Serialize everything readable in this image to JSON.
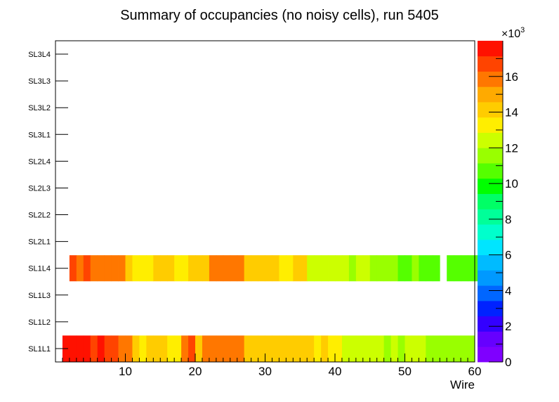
{
  "chart_data": {
    "type": "heatmap",
    "title": "Summary of occupancies (no noisy cells), run 5405",
    "xlabel": "Wire",
    "ylabel": "",
    "xlim": [
      0,
      60
    ],
    "x_ticks": [
      10,
      20,
      30,
      40,
      50,
      60
    ],
    "y_categories": [
      "SL1L1",
      "SL1L2",
      "SL1L3",
      "SL1L4",
      "SL2L1",
      "SL2L2",
      "SL2L3",
      "SL2L4",
      "SL3L1",
      "SL3L2",
      "SL3L3",
      "SL3L4"
    ],
    "z_range": [
      0,
      18000
    ],
    "z_ticks": [
      0,
      2,
      4,
      6,
      8,
      10,
      12,
      14,
      16
    ],
    "z_multiplier_label": "×10",
    "z_multiplier_exponent": "3",
    "palette": [
      "#7f00ff",
      "#6600ff",
      "#3300ff",
      "#0022ff",
      "#0066ff",
      "#0099ff",
      "#00bbff",
      "#00e5ff",
      "#00ffcc",
      "#00ff99",
      "#00ff66",
      "#00ff00",
      "#55ff00",
      "#99ff00",
      "#ccff00",
      "#ffee00",
      "#ffcc00",
      "#ffaa00",
      "#ff7700",
      "#ff4400",
      "#ff1100"
    ],
    "series": [
      {
        "name": "SL1L1",
        "values": [
          17500,
          17500,
          17500,
          17500,
          16500,
          17500,
          16500,
          16500,
          15500,
          15500,
          14500,
          13500,
          14500,
          14500,
          14500,
          13500,
          13500,
          15500,
          16500,
          14500,
          15500,
          15500,
          15500,
          15500,
          15500,
          15500,
          14500,
          14500,
          14500,
          14500,
          14500,
          14500,
          14500,
          14500,
          14500,
          14500,
          13500,
          14500,
          13500,
          13500,
          12500,
          12500,
          12500,
          12500,
          12500,
          12500,
          11500,
          12500,
          11500,
          12500,
          12500,
          12500,
          11500,
          11500,
          11500,
          11500,
          11500,
          11500,
          11500
        ]
      },
      {
        "name": "SL1L4",
        "values": [
          null,
          16500,
          15500,
          16500,
          15500,
          15500,
          15500,
          15500,
          15500,
          14500,
          13500,
          13500,
          13500,
          14500,
          14500,
          14500,
          13500,
          13500,
          14500,
          14500,
          14500,
          15500,
          15500,
          15500,
          15500,
          15500,
          14500,
          14500,
          14500,
          14500,
          14500,
          13500,
          13500,
          14500,
          14500,
          12500,
          12500,
          12500,
          12500,
          12500,
          12500,
          11500,
          12500,
          12500,
          11500,
          11500,
          11500,
          11500,
          10500,
          10500,
          11500,
          10500,
          10500,
          10500,
          null,
          10500,
          10500,
          10500,
          10500,
          10500
        ]
      }
    ]
  }
}
